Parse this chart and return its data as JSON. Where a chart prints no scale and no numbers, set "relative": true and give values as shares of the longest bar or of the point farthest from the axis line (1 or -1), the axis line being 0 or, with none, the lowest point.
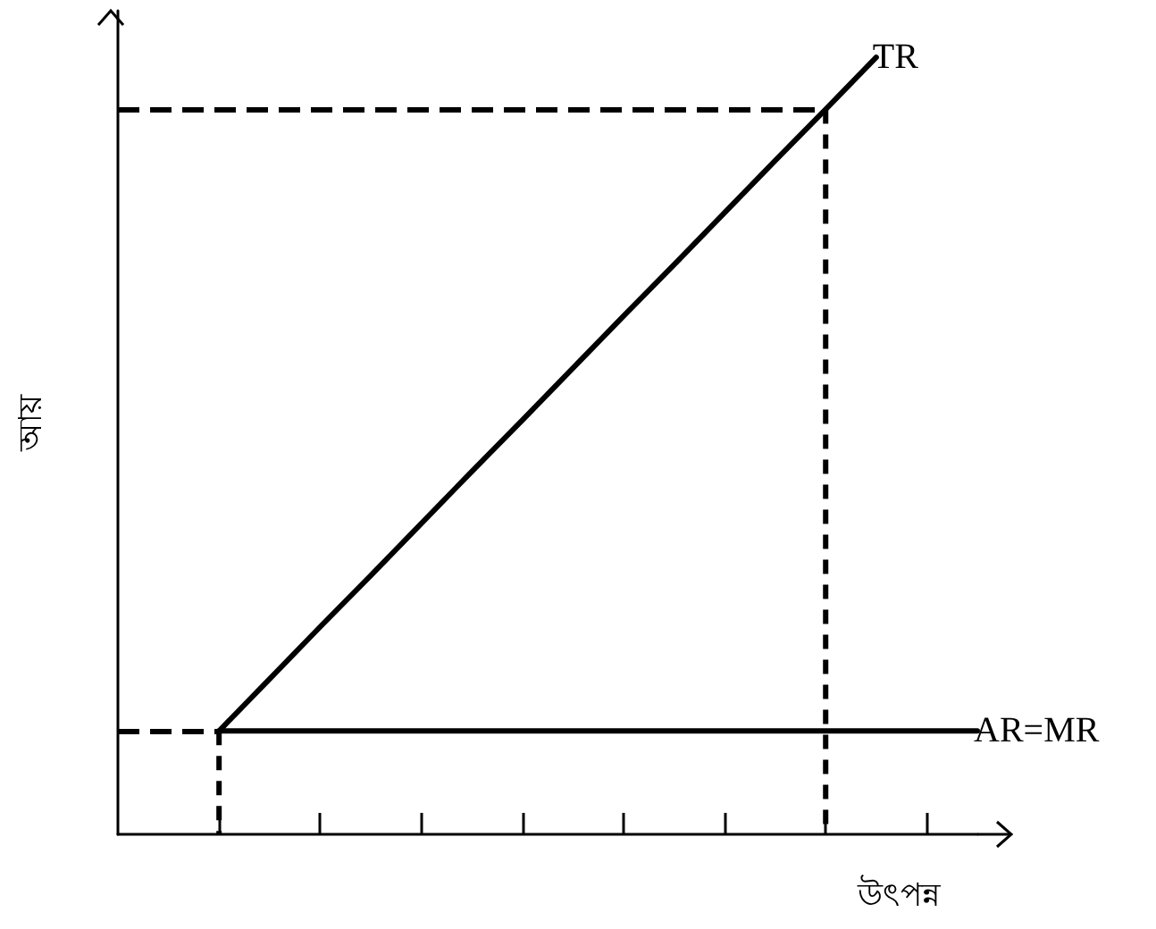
{
  "chart_data": {
    "type": "line",
    "relative": true,
    "xlabel": "উৎপন্ন",
    "ylabel": "আয়",
    "categories": [
      null,
      null,
      null,
      null,
      null,
      null,
      null,
      null,
      null,
      null,
      null,
      null,
      null,
      null,
      null,
      null,
      null,
      null
    ],
    "grid": false,
    "legend": false,
    "marker": "none",
    "line_style": "solid",
    "series": [
      {
        "name": "TR",
        "color": "#000000",
        "values": [
          null,
          null,
          0.133,
          0.2,
          0.267,
          0.333,
          0.4,
          0.467,
          0.533,
          0.6,
          0.667,
          0.733,
          0.8,
          0.867,
          0.933,
          1,
          null,
          null
        ]
      },
      {
        "name": "AR=MR",
        "color": "#000000",
        "values": [
          null,
          null,
          0.133,
          0.133,
          0.133,
          0.133,
          0.133,
          0.133,
          0.133,
          0.133,
          0.133,
          0.133,
          0.133,
          0.133,
          0.133,
          0.133,
          0.133,
          0.133
        ]
      }
    ],
    "ref_lines": [
      {
        "axis": "y",
        "value": 0.133,
        "color": "#000000",
        "line_style": "dashed"
      },
      {
        "axis": "y",
        "value": 0.933,
        "color": "#000000",
        "line_style": "dashed"
      }
    ]
  }
}
